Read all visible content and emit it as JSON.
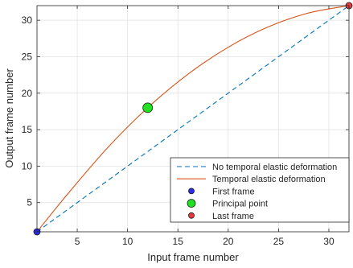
{
  "chart_data": {
    "type": "line",
    "xlabel": "Input frame number",
    "ylabel": "Output frame number",
    "xlim": [
      1,
      32
    ],
    "ylim": [
      1,
      32
    ],
    "xticks": [
      5,
      10,
      15,
      20,
      25,
      30
    ],
    "yticks": [
      5,
      10,
      15,
      20,
      25,
      30
    ],
    "grid": true,
    "legend_position": "bottom-right",
    "series": [
      {
        "name": "No temporal elastic deformation",
        "kind": "line",
        "style": "dashed",
        "color": "#0072BD",
        "x": [
          1,
          32
        ],
        "y": [
          1,
          32
        ]
      },
      {
        "name": "Temporal elastic deformation",
        "kind": "line",
        "style": "solid",
        "color": "#D95319",
        "x": [
          1,
          4,
          8,
          12,
          16,
          20,
          24,
          28,
          32
        ],
        "y": [
          1,
          6.1,
          12.5,
          18,
          22.6,
          26.3,
          29.1,
          31,
          32
        ]
      },
      {
        "name": "First frame",
        "kind": "point",
        "color": "#2B2BE8",
        "x": [
          1
        ],
        "y": [
          1
        ]
      },
      {
        "name": "Principal point",
        "kind": "point",
        "color": "#22E022",
        "x": [
          12
        ],
        "y": [
          18
        ]
      },
      {
        "name": "Last frame",
        "kind": "point",
        "color": "#E83A3A",
        "x": [
          32
        ],
        "y": [
          32
        ]
      }
    ]
  }
}
